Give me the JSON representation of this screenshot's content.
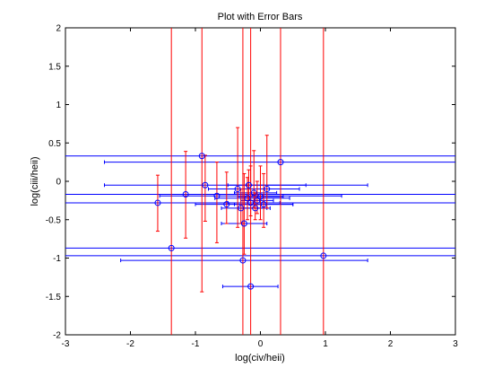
{
  "chart_data": {
    "type": "scatter",
    "title": "Plot with Error Bars",
    "xlabel": "log(civ/heii)",
    "ylabel": "log(ciii/heii)",
    "xlim": [
      -3,
      3
    ],
    "ylim": [
      -2,
      2
    ],
    "xticks": [
      -3,
      -2,
      -1,
      0,
      1,
      2,
      3
    ],
    "xtick_labels": [
      "-3",
      "-2",
      "-1",
      "0",
      "1",
      "2",
      "3"
    ],
    "yticks": [
      -2,
      -1.5,
      -1,
      -0.5,
      0,
      0.5,
      1,
      1.5,
      2
    ],
    "ytick_labels": [
      "-2",
      "-1.5",
      "-1",
      "-0.5",
      "0",
      "0.5",
      "1",
      "1.5",
      "2"
    ],
    "grid": false,
    "marker": "circle",
    "marker_color": "#0000ff",
    "xerr_color": "#0000ff",
    "yerr_color": "#ff0000",
    "points": [
      {
        "x": -1.37,
        "y": -0.87,
        "xlo": -3.2,
        "xhi": 3.2,
        "ylo": -2.2,
        "yhi": 2.2
      },
      {
        "x": 0.97,
        "y": -0.97,
        "xlo": -3.2,
        "xhi": 3.2,
        "ylo": -2.2,
        "yhi": 2.2
      },
      {
        "x": -0.27,
        "y": -1.03,
        "xlo": -2.15,
        "xhi": 1.65,
        "ylo": -2.2,
        "yhi": 2.2
      },
      {
        "x": -0.15,
        "y": -1.37,
        "xlo": -0.58,
        "xhi": 0.27,
        "ylo": -2.2,
        "yhi": 2.2
      },
      {
        "x": 0.31,
        "y": 0.25,
        "xlo": -2.4,
        "xhi": 3.2,
        "ylo": -2.2,
        "yhi": 2.2
      },
      {
        "x": -0.9,
        "y": 0.33,
        "xlo": -3.2,
        "xhi": 3.2,
        "ylo": -1.44,
        "yhi": 2.2
      },
      {
        "x": -1.58,
        "y": -0.28,
        "xlo": -3.2,
        "xhi": 3.2,
        "ylo": -0.65,
        "yhi": 0.08
      },
      {
        "x": -1.15,
        "y": -0.17,
        "xlo": -3.2,
        "xhi": 3.2,
        "ylo": -0.74,
        "yhi": 0.39
      },
      {
        "x": -0.85,
        "y": -0.05,
        "xlo": -2.4,
        "xhi": 1.65,
        "ylo": -0.52,
        "yhi": 0.34
      },
      {
        "x": -0.67,
        "y": -0.19,
        "xlo": -1.55,
        "xhi": 1.25,
        "ylo": -0.8,
        "yhi": 0.25
      },
      {
        "x": -0.52,
        "y": -0.3,
        "xlo": -1.0,
        "xhi": 0.5,
        "ylo": -0.55,
        "yhi": 0.12
      },
      {
        "x": -0.35,
        "y": -0.1,
        "xlo": -0.8,
        "xhi": 0.6,
        "ylo": -0.6,
        "yhi": 0.7
      },
      {
        "x": -0.25,
        "y": -0.55,
        "xlo": -0.6,
        "xhi": 0.1,
        "ylo": -0.95,
        "yhi": 0.1
      },
      {
        "x": -0.2,
        "y": -0.22,
        "xlo": -0.7,
        "xhi": 0.45,
        "ylo": -0.5,
        "yhi": 0.05
      },
      {
        "x": -0.15,
        "y": -0.28,
        "xlo": -0.5,
        "xhi": 0.3,
        "ylo": -0.45,
        "yhi": 0.2
      },
      {
        "x": -0.1,
        "y": -0.15,
        "xlo": -0.4,
        "xhi": 0.25,
        "ylo": -0.35,
        "yhi": 0.4
      },
      {
        "x": -0.05,
        "y": -0.25,
        "xlo": -0.3,
        "xhi": 0.2,
        "ylo": -0.42,
        "yhi": 0.0
      },
      {
        "x": 0.0,
        "y": -0.2,
        "xlo": -0.35,
        "xhi": 0.35,
        "ylo": -0.5,
        "yhi": 0.2
      },
      {
        "x": 0.05,
        "y": -0.3,
        "xlo": -0.4,
        "xhi": 0.5,
        "ylo": -0.6,
        "yhi": 0.1
      },
      {
        "x": -0.3,
        "y": -0.35,
        "xlo": -0.6,
        "xhi": 0.1,
        "ylo": -0.55,
        "yhi": -0.1
      },
      {
        "x": 0.1,
        "y": -0.1,
        "xlo": -0.2,
        "xhi": 0.6,
        "ylo": -0.35,
        "yhi": 0.6
      },
      {
        "x": -0.18,
        "y": -0.05,
        "xlo": -0.5,
        "xhi": 0.7,
        "ylo": -0.25,
        "yhi": 0.15
      },
      {
        "x": -0.08,
        "y": -0.35,
        "xlo": -0.35,
        "xhi": 0.15,
        "ylo": -0.5,
        "yhi": -0.15
      }
    ]
  }
}
